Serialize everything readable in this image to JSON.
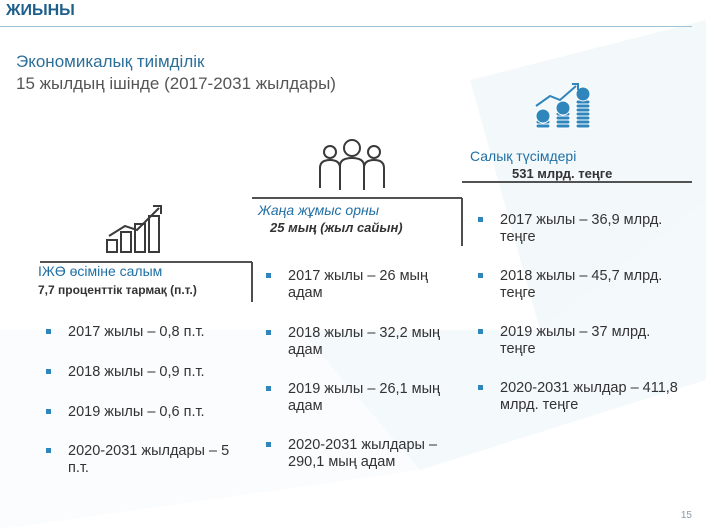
{
  "header": {
    "title": "ЖИЫНЫ"
  },
  "subtitle": {
    "line1": "Экономикалық тиімділік",
    "line2": "15 жылдың ішінде (2017-2031 жылдары)"
  },
  "gdp": {
    "label_line1": "ІЖӨ өсіміне салым",
    "label_line2": "7,7 проценттік тармақ (п.т.)",
    "items": [
      "2017 жылы – 0,8 п.т.",
      "2018 жылы – 0,9 п.т.",
      "2019 жылы – 0,6 п.т.",
      "2020-2031 жылдары – 5 п.т."
    ]
  },
  "jobs": {
    "label_line1": "Жаңа жұмыс орны",
    "label_line2": "25 мың (жыл сайын)",
    "items": [
      "2017 жылы – 26 мың адам",
      "2018 жылы – 32,2 мың адам",
      "2019 жылы – 26,1 мың адам",
      "2020-2031 жылдары – 290,1 мың адам"
    ]
  },
  "tax": {
    "label_line1": "Салық түсімдері",
    "label_line2": "531 млрд. теңге",
    "items": [
      "2017 жылы – 36,9 млрд. теңге",
      "2018 жылы – 45,7 млрд. теңге",
      "2019 жылы – 37 млрд. теңге",
      "2020-2031 жылдар – 411,8 млрд. теңге"
    ]
  },
  "page_number": "15",
  "colors": {
    "accent": "#2f86bd",
    "heading": "#1f5f8b",
    "text": "#333333"
  }
}
